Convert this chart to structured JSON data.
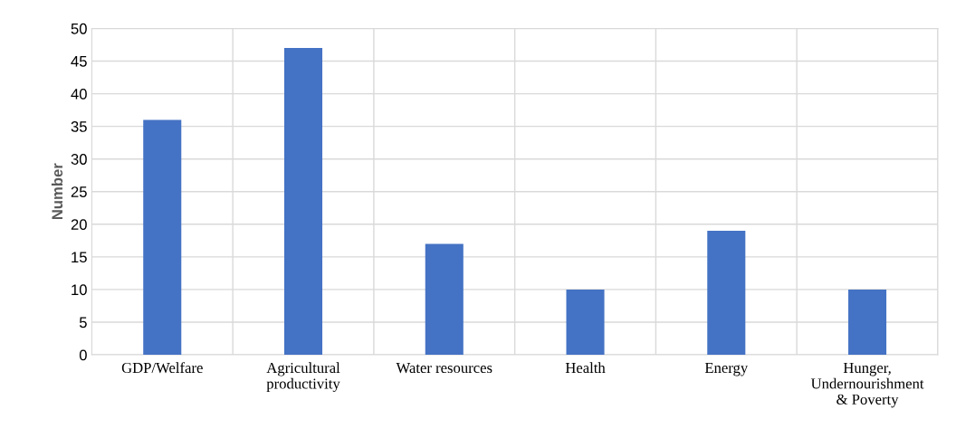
{
  "chart_data": {
    "type": "bar",
    "ylabel": "Number",
    "categories": [
      "GDP/Welfare",
      "Agricultural\nproductivity",
      "Water resources",
      "Health",
      "Energy",
      "Hunger,\nUndernourishment\n& Poverty"
    ],
    "values": [
      36,
      47,
      17,
      10,
      19,
      10
    ],
    "color": "#4472c4",
    "ylim": [
      0,
      50
    ],
    "yticks": [
      0,
      5,
      10,
      15,
      20,
      25,
      30,
      35,
      40,
      45,
      50
    ],
    "grid": true
  }
}
